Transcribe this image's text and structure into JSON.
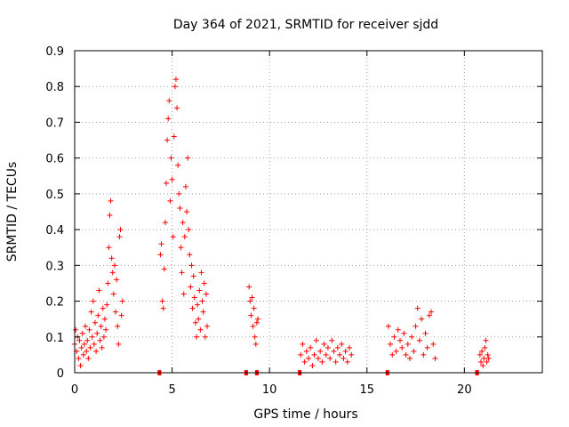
{
  "chart_data": {
    "type": "scatter",
    "title": "Day 364 of 2021, SRMTID for receiver sjdd",
    "xlabel": "GPS time / hours",
    "ylabel": "SRMTID / TECUs",
    "xlim": [
      0,
      24
    ],
    "ylim": [
      0,
      0.9
    ],
    "x_ticks": [
      0,
      5,
      10,
      15,
      20
    ],
    "x_tick_labels": [
      "0",
      "5",
      "10",
      "15",
      "20"
    ],
    "y_ticks": [
      0,
      0.1,
      0.2,
      0.3,
      0.4,
      0.5,
      0.6,
      0.7,
      0.8,
      0.9
    ],
    "y_tick_labels": [
      "0",
      "0.1",
      "0.2",
      "0.3",
      "0.4",
      "0.5",
      "0.6",
      "0.7",
      "0.8",
      "0.9"
    ],
    "grid": true,
    "marker": "+",
    "color": "#ff0000",
    "series": [
      {
        "name": "SRMTID",
        "points": [
          [
            0.0,
            0.08
          ],
          [
            0.05,
            0.12
          ],
          [
            0.1,
            0.06
          ],
          [
            0.15,
            0.1
          ],
          [
            0.2,
            0.04
          ],
          [
            0.25,
            0.09
          ],
          [
            0.3,
            0.02
          ],
          [
            0.35,
            0.07
          ],
          [
            0.4,
            0.11
          ],
          [
            0.45,
            0.05
          ],
          [
            0.5,
            0.08
          ],
          [
            0.55,
            0.13
          ],
          [
            0.6,
            0.06
          ],
          [
            0.65,
            0.09
          ],
          [
            0.7,
            0.04
          ],
          [
            0.75,
            0.12
          ],
          [
            0.8,
            0.07
          ],
          [
            0.85,
            0.17
          ],
          [
            0.9,
            0.1
          ],
          [
            0.95,
            0.2
          ],
          [
            1.0,
            0.08
          ],
          [
            1.05,
            0.14
          ],
          [
            1.1,
            0.06
          ],
          [
            1.15,
            0.11
          ],
          [
            1.2,
            0.16
          ],
          [
            1.25,
            0.23
          ],
          [
            1.3,
            0.09
          ],
          [
            1.35,
            0.13
          ],
          [
            1.4,
            0.07
          ],
          [
            1.45,
            0.18
          ],
          [
            1.5,
            0.1
          ],
          [
            1.55,
            0.15
          ],
          [
            1.6,
            0.12
          ],
          [
            1.65,
            0.19
          ],
          [
            1.7,
            0.25
          ],
          [
            1.75,
            0.35
          ],
          [
            1.8,
            0.44
          ],
          [
            1.85,
            0.48
          ],
          [
            1.9,
            0.32
          ],
          [
            1.95,
            0.28
          ],
          [
            2.0,
            0.22
          ],
          [
            2.05,
            0.3
          ],
          [
            2.1,
            0.17
          ],
          [
            2.15,
            0.26
          ],
          [
            2.2,
            0.13
          ],
          [
            2.25,
            0.08
          ],
          [
            2.3,
            0.38
          ],
          [
            2.35,
            0.4
          ],
          [
            2.4,
            0.16
          ],
          [
            2.45,
            0.2
          ],
          [
            4.35,
            0.0
          ],
          [
            4.4,
            0.33
          ],
          [
            4.45,
            0.36
          ],
          [
            4.5,
            0.2
          ],
          [
            4.55,
            0.18
          ],
          [
            4.6,
            0.29
          ],
          [
            4.65,
            0.42
          ],
          [
            4.7,
            0.53
          ],
          [
            4.75,
            0.65
          ],
          [
            4.8,
            0.71
          ],
          [
            4.85,
            0.76
          ],
          [
            4.9,
            0.48
          ],
          [
            4.95,
            0.6
          ],
          [
            5.0,
            0.54
          ],
          [
            5.05,
            0.38
          ],
          [
            5.1,
            0.66
          ],
          [
            5.15,
            0.8
          ],
          [
            5.2,
            0.82
          ],
          [
            5.25,
            0.74
          ],
          [
            5.3,
            0.58
          ],
          [
            5.35,
            0.5
          ],
          [
            5.4,
            0.46
          ],
          [
            5.45,
            0.35
          ],
          [
            5.5,
            0.28
          ],
          [
            5.55,
            0.42
          ],
          [
            5.6,
            0.22
          ],
          [
            5.65,
            0.38
          ],
          [
            5.7,
            0.52
          ],
          [
            5.75,
            0.45
          ],
          [
            5.8,
            0.6
          ],
          [
            5.85,
            0.4
          ],
          [
            5.9,
            0.33
          ],
          [
            5.95,
            0.24
          ],
          [
            6.0,
            0.3
          ],
          [
            6.05,
            0.18
          ],
          [
            6.1,
            0.27
          ],
          [
            6.15,
            0.21
          ],
          [
            6.2,
            0.14
          ],
          [
            6.25,
            0.1
          ],
          [
            6.3,
            0.19
          ],
          [
            6.35,
            0.15
          ],
          [
            6.4,
            0.23
          ],
          [
            6.45,
            0.12
          ],
          [
            6.5,
            0.28
          ],
          [
            6.55,
            0.2
          ],
          [
            6.6,
            0.17
          ],
          [
            6.65,
            0.25
          ],
          [
            6.7,
            0.1
          ],
          [
            6.75,
            0.22
          ],
          [
            6.8,
            0.13
          ],
          [
            8.8,
            0.0
          ],
          [
            8.95,
            0.24
          ],
          [
            9.0,
            0.2
          ],
          [
            9.05,
            0.16
          ],
          [
            9.1,
            0.21
          ],
          [
            9.15,
            0.13
          ],
          [
            9.2,
            0.18
          ],
          [
            9.25,
            0.1
          ],
          [
            9.3,
            0.08
          ],
          [
            9.35,
            0.14
          ],
          [
            9.4,
            0.15
          ],
          [
            9.35,
            0.0
          ],
          [
            11.55,
            0.0
          ],
          [
            11.6,
            0.05
          ],
          [
            11.7,
            0.08
          ],
          [
            11.8,
            0.03
          ],
          [
            11.9,
            0.06
          ],
          [
            12.0,
            0.04
          ],
          [
            12.1,
            0.07
          ],
          [
            12.2,
            0.02
          ],
          [
            12.3,
            0.05
          ],
          [
            12.4,
            0.09
          ],
          [
            12.5,
            0.04
          ],
          [
            12.6,
            0.06
          ],
          [
            12.7,
            0.03
          ],
          [
            12.8,
            0.08
          ],
          [
            12.9,
            0.05
          ],
          [
            13.0,
            0.07
          ],
          [
            13.1,
            0.04
          ],
          [
            13.2,
            0.09
          ],
          [
            13.3,
            0.06
          ],
          [
            13.4,
            0.03
          ],
          [
            13.5,
            0.07
          ],
          [
            13.6,
            0.05
          ],
          [
            13.7,
            0.08
          ],
          [
            13.8,
            0.04
          ],
          [
            13.9,
            0.06
          ],
          [
            14.0,
            0.03
          ],
          [
            14.1,
            0.07
          ],
          [
            14.2,
            0.05
          ],
          [
            16.05,
            0.0
          ],
          [
            16.1,
            0.13
          ],
          [
            16.2,
            0.08
          ],
          [
            16.3,
            0.05
          ],
          [
            16.4,
            0.1
          ],
          [
            16.5,
            0.06
          ],
          [
            16.6,
            0.12
          ],
          [
            16.7,
            0.09
          ],
          [
            16.8,
            0.07
          ],
          [
            16.9,
            0.11
          ],
          [
            17.0,
            0.05
          ],
          [
            17.1,
            0.08
          ],
          [
            17.2,
            0.04
          ],
          [
            17.3,
            0.1
          ],
          [
            17.4,
            0.06
          ],
          [
            17.5,
            0.13
          ],
          [
            17.6,
            0.18
          ],
          [
            17.7,
            0.09
          ],
          [
            17.8,
            0.15
          ],
          [
            17.9,
            0.05
          ],
          [
            18.0,
            0.11
          ],
          [
            18.1,
            0.07
          ],
          [
            18.2,
            0.16
          ],
          [
            18.3,
            0.17
          ],
          [
            18.4,
            0.08
          ],
          [
            18.5,
            0.04
          ],
          [
            20.65,
            0.0
          ],
          [
            20.8,
            0.05
          ],
          [
            20.85,
            0.03
          ],
          [
            20.9,
            0.06
          ],
          [
            20.95,
            0.02
          ],
          [
            21.0,
            0.04
          ],
          [
            21.05,
            0.07
          ],
          [
            21.1,
            0.09
          ],
          [
            21.15,
            0.03
          ],
          [
            21.2,
            0.05
          ],
          [
            21.25,
            0.04
          ]
        ]
      }
    ]
  }
}
